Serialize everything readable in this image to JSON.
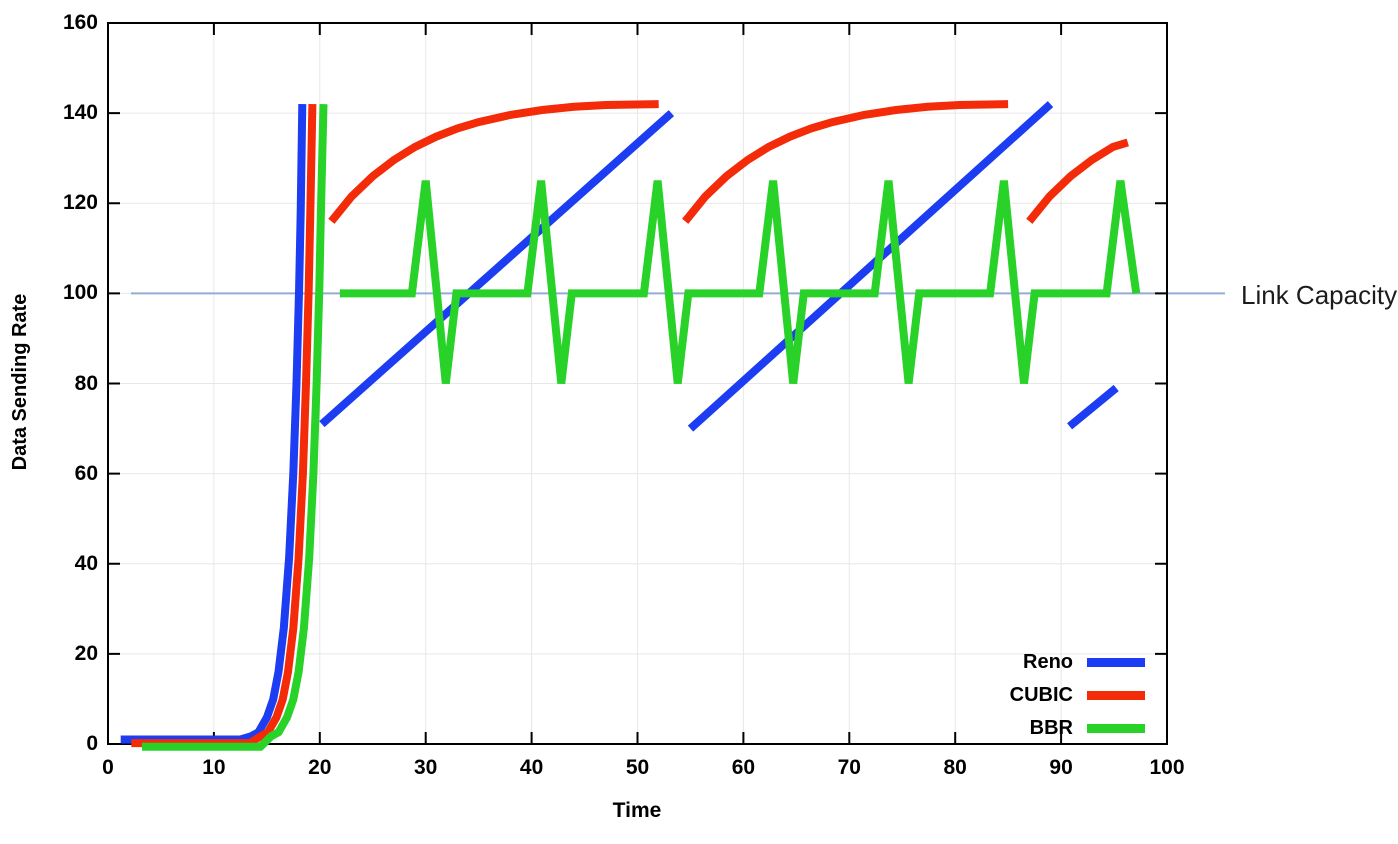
{
  "chart_data": {
    "type": "line",
    "title": "",
    "xlabel": "Time",
    "ylabel": "Data Sending Rate",
    "xlim": [
      0,
      100
    ],
    "ylim": [
      0,
      160
    ],
    "x_ticks": [
      0,
      10,
      20,
      30,
      40,
      50,
      60,
      70,
      80,
      90,
      100
    ],
    "y_ticks": [
      0,
      20,
      40,
      60,
      80,
      100,
      120,
      140,
      160
    ],
    "grid": true,
    "grid_color": "#e7e7e7",
    "legend_position": "bottom-right-inside",
    "link_capacity": {
      "label": "Link Capacity",
      "y": 100,
      "color": "#95abd6"
    },
    "series": [
      {
        "name": "Reno",
        "color": "#1c3df2",
        "segments": [
          [
            [
              1.2,
              1.0
            ],
            [
              12.5,
              1.0
            ],
            [
              13.5,
              1.7
            ],
            [
              14.2,
              2.6
            ],
            [
              15,
              5.9
            ],
            [
              15.6,
              9.9
            ],
            [
              16.1,
              16
            ],
            [
              16.6,
              25.7
            ],
            [
              17.1,
              41.3
            ],
            [
              17.5,
              60
            ],
            [
              17.8,
              80
            ],
            [
              18.05,
              101
            ],
            [
              18.2,
              118
            ],
            [
              18.35,
              142
            ]
          ],
          [
            [
              20.2,
              71
            ],
            [
              53.2,
              140
            ]
          ],
          [
            [
              55,
              70
            ],
            [
              89,
              142
            ]
          ],
          [
            [
              90.8,
              70.5
            ],
            [
              95.2,
              79
            ]
          ]
        ]
      },
      {
        "name": "CUBIC",
        "color": "#f32b08",
        "segments": [
          [
            [
              2.2,
              0.2
            ],
            [
              13.4,
              0.2
            ],
            [
              14.4,
              1.7
            ],
            [
              15.1,
              2.6
            ],
            [
              15.9,
              5.9
            ],
            [
              16.5,
              9.9
            ],
            [
              17,
              16
            ],
            [
              17.5,
              25.7
            ],
            [
              18,
              41.3
            ],
            [
              18.4,
              60
            ],
            [
              18.7,
              80
            ],
            [
              18.95,
              101
            ],
            [
              19.1,
              118
            ],
            [
              19.3,
              142
            ]
          ],
          [
            [
              21.1,
              116
            ],
            [
              23,
              121.5
            ],
            [
              25,
              126
            ],
            [
              27,
              129.6
            ],
            [
              29,
              132.5
            ],
            [
              31,
              134.8
            ],
            [
              33,
              136.6
            ],
            [
              35,
              138
            ],
            [
              38,
              139.6
            ],
            [
              41,
              140.7
            ],
            [
              44,
              141.4
            ],
            [
              47,
              141.8
            ],
            [
              52,
              142
            ]
          ],
          [
            [
              54.5,
              116
            ],
            [
              56.4,
              121.5
            ],
            [
              58.4,
              126
            ],
            [
              60.4,
              129.6
            ],
            [
              62.4,
              132.5
            ],
            [
              64.4,
              134.8
            ],
            [
              66.4,
              136.6
            ],
            [
              68.4,
              138
            ],
            [
              71.4,
              139.6
            ],
            [
              74.4,
              140.7
            ],
            [
              77.4,
              141.4
            ],
            [
              80.4,
              141.8
            ],
            [
              85,
              142
            ]
          ],
          [
            [
              87,
              116
            ],
            [
              88.9,
              121.5
            ],
            [
              90.9,
              126
            ],
            [
              92.9,
              129.6
            ],
            [
              94.9,
              132.5
            ],
            [
              96.3,
              133.5
            ]
          ]
        ]
      },
      {
        "name": "BBR",
        "color": "#28d228",
        "segments": [
          [
            [
              3.2,
              -0.6
            ],
            [
              14.4,
              -0.6
            ],
            [
              15.4,
              1.7
            ],
            [
              16.1,
              2.6
            ],
            [
              16.9,
              5.9
            ],
            [
              17.5,
              9.9
            ],
            [
              18,
              16
            ],
            [
              18.5,
              25.7
            ],
            [
              19,
              41.3
            ],
            [
              19.4,
              60
            ],
            [
              19.7,
              80
            ],
            [
              19.95,
              101
            ],
            [
              20.1,
              118
            ],
            [
              20.35,
              142
            ]
          ],
          [
            [
              21.9,
              100
            ],
            [
              28.7,
              100
            ],
            [
              30,
              125
            ],
            [
              31.9,
              80
            ],
            [
              32.9,
              100
            ],
            [
              39.6,
              100
            ],
            [
              40.9,
              125
            ],
            [
              42.8,
              80
            ],
            [
              43.8,
              100
            ],
            [
              50.6,
              100
            ],
            [
              51.9,
              125
            ],
            [
              53.8,
              80
            ],
            [
              54.8,
              100
            ],
            [
              61.5,
              100
            ],
            [
              62.8,
              125
            ],
            [
              64.7,
              80
            ],
            [
              65.7,
              100
            ],
            [
              72.4,
              100
            ],
            [
              73.7,
              125
            ],
            [
              75.6,
              80
            ],
            [
              76.6,
              100
            ],
            [
              83.3,
              100
            ],
            [
              84.6,
              125
            ],
            [
              86.5,
              80
            ],
            [
              87.5,
              100
            ],
            [
              94.3,
              100
            ],
            [
              95.6,
              125
            ],
            [
              97.1,
              100
            ]
          ]
        ]
      }
    ]
  }
}
